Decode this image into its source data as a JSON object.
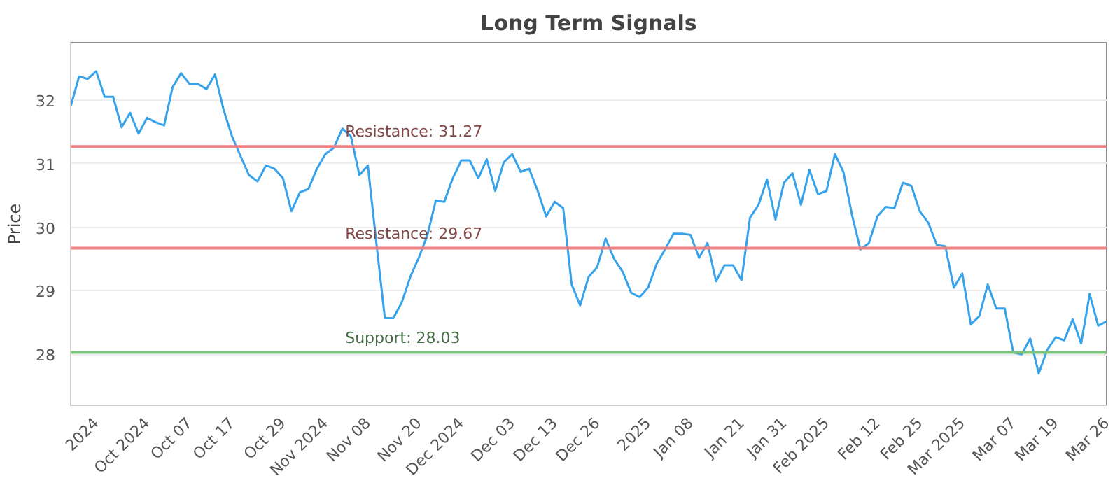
{
  "chart_data": {
    "type": "line",
    "title": "Long Term Signals",
    "ylabel": "Price",
    "categories": [
      null,
      null,
      null,
      "2024",
      null,
      null,
      null,
      null,
      null,
      "Oct 2024",
      null,
      null,
      null,
      null,
      "Oct 07",
      null,
      null,
      null,
      null,
      "Oct 17",
      null,
      null,
      null,
      null,
      null,
      "Oct 29",
      null,
      null,
      null,
      null,
      "Nov 2024",
      null,
      null,
      null,
      null,
      "Nov 08",
      null,
      null,
      null,
      null,
      null,
      "Nov 20",
      null,
      null,
      null,
      null,
      "Dec 2024",
      null,
      null,
      null,
      null,
      null,
      "Dec 03",
      null,
      null,
      null,
      null,
      "Dec 13",
      null,
      null,
      null,
      null,
      "Dec 26",
      null,
      null,
      null,
      null,
      null,
      "2025",
      null,
      null,
      null,
      null,
      "Jan 08",
      null,
      null,
      null,
      null,
      null,
      "Jan 21",
      null,
      null,
      null,
      null,
      "Jan 31",
      null,
      null,
      null,
      null,
      "Feb 2025",
      null,
      null,
      null,
      null,
      null,
      "Feb 12",
      null,
      null,
      null,
      null,
      "Feb 25",
      null,
      null,
      null,
      null,
      "Mar 2025",
      null,
      null,
      null,
      null,
      null,
      "Mar 07",
      null,
      null,
      null,
      null,
      "Mar 19",
      null,
      null,
      null,
      null,
      null,
      "Mar 26"
    ],
    "series": [
      {
        "color": "#35a2eb",
        "values": [
          31.9,
          32.37,
          32.33,
          32.45,
          32.05,
          32.05,
          31.57,
          31.8,
          31.47,
          31.72,
          31.65,
          31.6,
          32.2,
          32.42,
          32.25,
          32.25,
          32.17,
          32.4,
          31.85,
          31.43,
          31.12,
          30.82,
          30.72,
          30.97,
          30.92,
          30.77,
          30.25,
          30.55,
          30.6,
          30.92,
          31.15,
          31.25,
          31.55,
          31.43,
          30.82,
          30.97,
          29.75,
          28.57,
          28.57,
          28.82,
          29.22,
          29.52,
          29.87,
          30.42,
          30.4,
          30.77,
          31.05,
          31.05,
          30.77,
          31.07,
          30.57,
          31.02,
          31.15,
          30.87,
          30.92,
          30.57,
          30.17,
          30.4,
          30.3,
          29.1,
          28.77,
          29.22,
          29.37,
          29.82,
          29.5,
          29.3,
          28.97,
          28.9,
          29.05,
          29.42,
          29.65,
          29.9,
          29.9,
          29.88,
          29.52,
          29.75,
          29.15,
          29.4,
          29.4,
          29.17,
          30.15,
          30.35,
          30.75,
          30.12,
          30.7,
          30.85,
          30.35,
          30.9,
          30.52,
          30.57,
          31.15,
          30.87,
          30.2,
          29.65,
          29.75,
          30.17,
          30.32,
          30.3,
          30.7,
          30.65,
          30.25,
          30.07,
          29.72,
          29.7,
          29.05,
          29.27,
          28.47,
          28.6,
          29.1,
          28.72,
          28.72,
          28.03,
          28.0,
          28.25,
          27.7,
          28.07,
          28.27,
          28.22,
          28.55,
          28.17,
          28.95,
          28.45,
          28.52
        ]
      }
    ],
    "ylim": [
      27.2,
      32.9
    ],
    "yticks": [
      28,
      29,
      30,
      31,
      32
    ],
    "ref_lines": [
      {
        "axis": "y",
        "value": 31.27,
        "label": "Resistance: 31.27",
        "color": "#f08080"
      },
      {
        "axis": "y",
        "value": 29.67,
        "label": "Resistance: 29.67",
        "color": "#f08080"
      },
      {
        "axis": "y",
        "value": 28.03,
        "label": "Support: 28.03",
        "color": "#7cc47c"
      }
    ],
    "grid": "y",
    "marker": "none",
    "line_style": "solid"
  }
}
